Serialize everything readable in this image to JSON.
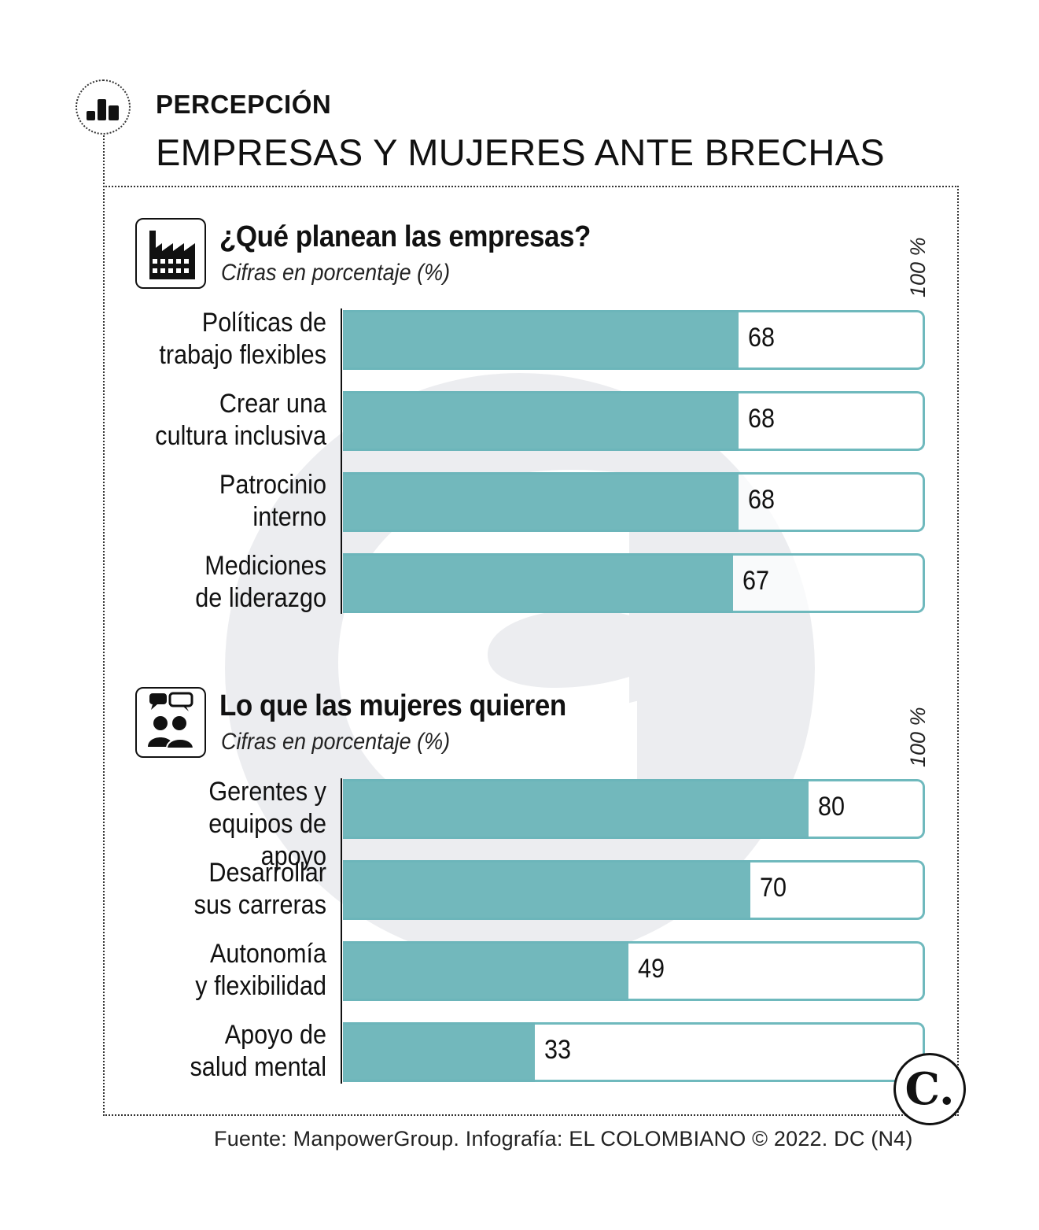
{
  "header": {
    "kicker": "PERCEPCIÓN",
    "headline": "EMPRESAS Y MUJERES ANTE BRECHAS",
    "icon": "bar-chart-icon"
  },
  "chart_data": [
    {
      "type": "bar",
      "orientation": "horizontal",
      "title": "¿Qué planean las empresas?",
      "subtitle": "Cifras en porcentaje (%)",
      "axis_max_label": "100 %",
      "xlim": [
        0,
        100
      ],
      "icon": "factory-icon",
      "categories": [
        "Políticas de trabajo flexibles",
        "Crear una cultura inclusiva",
        "Patrocinio interno",
        "Mediciones de liderazgo"
      ],
      "category_lines": [
        [
          "Políticas de",
          "trabajo flexibles"
        ],
        [
          "Crear una",
          "cultura inclusiva"
        ],
        [
          "Patrocinio",
          "interno"
        ],
        [
          "Mediciones",
          "de liderazgo"
        ]
      ],
      "values": [
        68,
        68,
        68,
        67
      ],
      "bar_color": "#6cb5b9"
    },
    {
      "type": "bar",
      "orientation": "horizontal",
      "title": "Lo que las mujeres quieren",
      "subtitle": "Cifras en porcentaje (%)",
      "axis_max_label": "100 %",
      "xlim": [
        0,
        100
      ],
      "icon": "people-chat-icon",
      "categories": [
        "Gerentes y equipos de apoyo",
        "Desarrollar sus carreras",
        "Autonomía y flexibilidad",
        "Apoyo de salud mental"
      ],
      "category_lines": [
        [
          "Gerentes y",
          "equipos de apoyo"
        ],
        [
          "Desarrollar",
          "sus carreras"
        ],
        [
          "Autonomía",
          "y flexibilidad"
        ],
        [
          "Apoyo de",
          "salud mental"
        ]
      ],
      "values": [
        80,
        70,
        49,
        33
      ],
      "bar_color": "#6cb5b9"
    }
  ],
  "footer": {
    "source": "Fuente: ManpowerGroup. Infografía: EL COLOMBIANO © 2022. DC (N4)",
    "logo_text": "C.",
    "logo_icon": "el-colombiano-logo-icon"
  }
}
